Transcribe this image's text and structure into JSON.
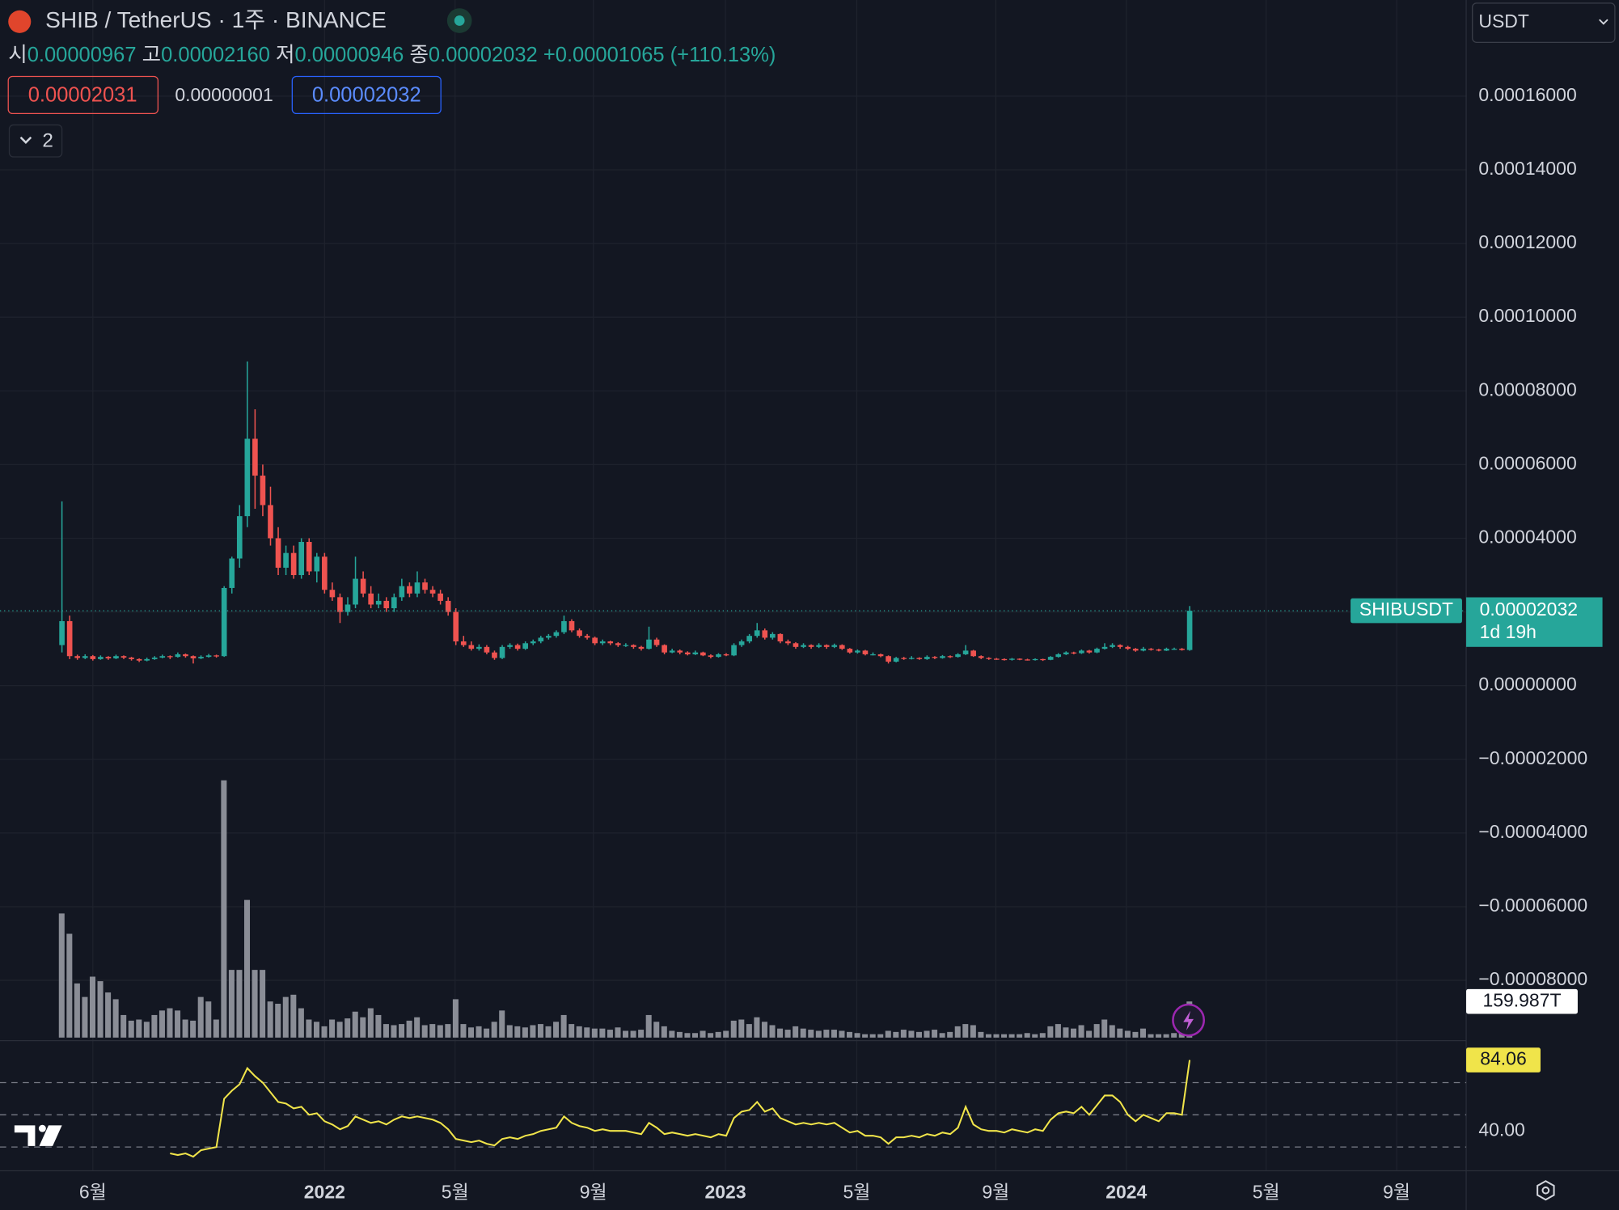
{
  "header": {
    "title": "SHIB / TetherUS · 1주 · BINANCE",
    "ohlc": [
      {
        "key": "시",
        "value": "0.00000967"
      },
      {
        "key": "고",
        "value": "0.00002160"
      },
      {
        "key": "저",
        "value": "0.00000946"
      },
      {
        "key": "종",
        "value": "0.00002032"
      }
    ],
    "change": "+0.00001065 (+110.13%)",
    "boxes": [
      "0.00002031",
      "0.00000001",
      "0.00002032"
    ],
    "indicators_toggle": "2",
    "currency": "USDT"
  },
  "chart_data": {
    "type": "candlestick",
    "up_color": "#26a69a",
    "down_color": "#ef5350",
    "grid": true,
    "ylim": [
      -9.61e-05,
      0.0001861
    ],
    "yticks": [
      {
        "value": 0.00016,
        "label": "0.00016000"
      },
      {
        "value": 0.00014,
        "label": "0.00014000"
      },
      {
        "value": 0.00012,
        "label": "0.00012000"
      },
      {
        "value": 0.0001,
        "label": "0.00010000"
      },
      {
        "value": 8e-05,
        "label": "0.00008000"
      },
      {
        "value": 6e-05,
        "label": "0.00006000"
      },
      {
        "value": 4e-05,
        "label": "0.00004000"
      },
      {
        "value": 2e-05,
        "label": "0.00002000"
      },
      {
        "value": 0,
        "label": "0.00000000"
      },
      {
        "value": -2e-05,
        "label": "−0.00002000"
      },
      {
        "value": -4e-05,
        "label": "−0.00004000"
      },
      {
        "value": -6e-05,
        "label": "−0.00006000"
      },
      {
        "value": -8e-05,
        "label": "−0.00008000"
      }
    ],
    "xlim": [
      -8.02,
      181.8
    ],
    "xticks": [
      {
        "value": 4.0,
        "label": "6월"
      },
      {
        "value": 34.0,
        "label": "2022"
      },
      {
        "value": 50.9,
        "label": "5월"
      },
      {
        "value": 68.8,
        "label": "9월"
      },
      {
        "value": 85.9,
        "label": "2023"
      },
      {
        "value": 102.9,
        "label": "5월"
      },
      {
        "value": 120.9,
        "label": "9월"
      },
      {
        "value": 137.8,
        "label": "2024"
      },
      {
        "value": 155.9,
        "label": "5월"
      },
      {
        "value": 172.8,
        "label": "9월"
      }
    ],
    "symbol_label": "SHIBUSDT",
    "last_price_label": "0.00002032",
    "countdown": "1d 19h",
    "candles": [
      [
        1.1e-05,
        5e-05,
        9e-06,
        1.75e-05
      ],
      [
        1.75e-05,
        1.9e-05,
        7.2e-06,
        8e-06
      ],
      [
        8e-06,
        8.4e-06,
        7e-06,
        7.5e-06
      ],
      [
        7.5e-06,
        8.5e-06,
        7.2e-06,
        8e-06
      ],
      [
        8e-06,
        8.3e-06,
        6.8e-06,
        7.2e-06
      ],
      [
        7.2e-06,
        8.2e-06,
        7e-06,
        7.8e-06
      ],
      [
        7.8e-06,
        8e-06,
        7e-06,
        7.4e-06
      ],
      [
        7.4e-06,
        8.4e-06,
        7.2e-06,
        8e-06
      ],
      [
        8e-06,
        8.2e-06,
        7.2e-06,
        7.6e-06
      ],
      [
        7.6e-06,
        7.8e-06,
        6.8e-06,
        7.2e-06
      ],
      [
        7.2e-06,
        7.4e-06,
        6.4e-06,
        6.8e-06
      ],
      [
        6.8e-06,
        7.6e-06,
        6.6e-06,
        7.2e-06
      ],
      [
        7.2e-06,
        8e-06,
        7e-06,
        7.6e-06
      ],
      [
        7.6e-06,
        8.4e-06,
        7.4e-06,
        8e-06
      ],
      [
        8e-06,
        8.2e-06,
        7.2e-06,
        7.8e-06
      ],
      [
        7.8e-06,
        9e-06,
        7.6e-06,
        8.5e-06
      ],
      [
        8.5e-06,
        8.7e-06,
        7.6e-06,
        8e-06
      ],
      [
        8e-06,
        8.2e-06,
        6e-06,
        7.4e-06
      ],
      [
        7.4e-06,
        8.2e-06,
        7.2e-06,
        7.8e-06
      ],
      [
        7.8e-06,
        8.6e-06,
        7.6e-06,
        8.2e-06
      ],
      [
        8.2e-06,
        8.4e-06,
        7.6e-06,
        8e-06
      ],
      [
        8e-06,
        2.7e-05,
        7.8e-06,
        2.65e-05
      ],
      [
        2.65e-05,
        3.5e-05,
        2.5e-05,
        3.45e-05
      ],
      [
        3.45e-05,
        4.9e-05,
        3.2e-05,
        4.6e-05
      ],
      [
        4.6e-05,
        8.8e-05,
        4.3e-05,
        6.7e-05
      ],
      [
        6.7e-05,
        7.5e-05,
        4.8e-05,
        5.7e-05
      ],
      [
        5.7e-05,
        6e-05,
        4.6e-05,
        4.9e-05
      ],
      [
        4.9e-05,
        5.4e-05,
        3.8e-05,
        4e-05
      ],
      [
        4e-05,
        4.3e-05,
        3e-05,
        3.2e-05
      ],
      [
        3.2e-05,
        3.8e-05,
        3e-05,
        3.6e-05
      ],
      [
        3.6e-05,
        3.8e-05,
        2.9e-05,
        3e-05
      ],
      [
        3e-05,
        4e-05,
        2.9e-05,
        3.9e-05
      ],
      [
        3.9e-05,
        4e-05,
        3e-05,
        3.1e-05
      ],
      [
        3.1e-05,
        3.6e-05,
        2.8e-05,
        3.5e-05
      ],
      [
        3.5e-05,
        3.6e-05,
        2.5e-05,
        2.6e-05
      ],
      [
        2.6e-05,
        2.8e-05,
        2.3e-05,
        2.4e-05
      ],
      [
        2.4e-05,
        2.5e-05,
        1.7e-05,
        2e-05
      ],
      [
        2e-05,
        2.4e-05,
        1.9e-05,
        2.2e-05
      ],
      [
        2.2e-05,
        3.5e-05,
        2.1e-05,
        2.9e-05
      ],
      [
        2.9e-05,
        3.1e-05,
        2.4e-05,
        2.5e-05
      ],
      [
        2.5e-05,
        2.7e-05,
        2.1e-05,
        2.2e-05
      ],
      [
        2.2e-05,
        2.5e-05,
        2.1e-05,
        2.3e-05
      ],
      [
        2.3e-05,
        2.4e-05,
        2e-05,
        2.1e-05
      ],
      [
        2.1e-05,
        2.5e-05,
        2e-05,
        2.4e-05
      ],
      [
        2.4e-05,
        2.9e-05,
        2.3e-05,
        2.7e-05
      ],
      [
        2.7e-05,
        2.8e-05,
        2.4e-05,
        2.5e-05
      ],
      [
        2.5e-05,
        3.1e-05,
        2.4e-05,
        2.8e-05
      ],
      [
        2.8e-05,
        2.9e-05,
        2.5e-05,
        2.6e-05
      ],
      [
        2.6e-05,
        2.7e-05,
        2.4e-05,
        2.5e-05
      ],
      [
        2.5e-05,
        2.6e-05,
        2.2e-05,
        2.3e-05
      ],
      [
        2.3e-05,
        2.4e-05,
        1.9e-05,
        2e-05
      ],
      [
        2e-05,
        2.1e-05,
        1.1e-05,
        1.2e-05
      ],
      [
        1.2e-05,
        1.35e-05,
        1.05e-05,
        1.1e-05
      ],
      [
        1.1e-05,
        1.2e-05,
        9.5e-06,
        1e-05
      ],
      [
        1e-05,
        1.12e-05,
        9.5e-06,
        1.05e-05
      ],
      [
        1.05e-05,
        1.1e-05,
        8.5e-06,
        9e-06
      ],
      [
        9e-06,
        9.5e-06,
        7e-06,
        7.5e-06
      ],
      [
        7.5e-06,
        1.1e-05,
        7.2e-06,
        1.05e-05
      ],
      [
        1.05e-05,
        1.15e-05,
        1e-05,
        1.1e-05
      ],
      [
        1.1e-05,
        1.14e-05,
        9.5e-06,
        1e-05
      ],
      [
        1e-05,
        1.2e-05,
        9.7e-06,
        1.15e-05
      ],
      [
        1.15e-05,
        1.25e-05,
        1.1e-05,
        1.2e-05
      ],
      [
        1.2e-05,
        1.35e-05,
        1.15e-05,
        1.3e-05
      ],
      [
        1.3e-05,
        1.4e-05,
        1.25e-05,
        1.35e-05
      ],
      [
        1.35e-05,
        1.5e-05,
        1.3e-05,
        1.45e-05
      ],
      [
        1.45e-05,
        1.9e-05,
        1.4e-05,
        1.75e-05
      ],
      [
        1.75e-05,
        1.8e-05,
        1.45e-05,
        1.5e-05
      ],
      [
        1.5e-05,
        1.55e-05,
        1.3e-05,
        1.35e-05
      ],
      [
        1.35e-05,
        1.4e-05,
        1.25e-05,
        1.3e-05
      ],
      [
        1.3e-05,
        1.33e-05,
        1.1e-05,
        1.15e-05
      ],
      [
        1.15e-05,
        1.25e-05,
        1.1e-05,
        1.2e-05
      ],
      [
        1.2e-05,
        1.22e-05,
        1.1e-05,
        1.15e-05
      ],
      [
        1.15e-05,
        1.18e-05,
        1.05e-05,
        1.1e-05
      ],
      [
        1.1e-05,
        1.15e-05,
        1.05e-05,
        1.1e-05
      ],
      [
        1.1e-05,
        1.12e-05,
        1e-05,
        1.05e-05
      ],
      [
        1.05e-05,
        1.08e-05,
        9.5e-06,
        1e-05
      ],
      [
        1e-05,
        1.6e-05,
        9.8e-06,
        1.25e-05
      ],
      [
        1.25e-05,
        1.3e-05,
        1.05e-05,
        1.1e-05
      ],
      [
        1.1e-05,
        1.12e-05,
        8.5e-06,
        9e-06
      ],
      [
        9e-06,
        1e-05,
        8.8e-06,
        9.5e-06
      ],
      [
        9.5e-06,
        9.8e-06,
        8.5e-06,
        9e-06
      ],
      [
        9e-06,
        9.3e-06,
        8.2e-06,
        8.5e-06
      ],
      [
        8.5e-06,
        9.5e-06,
        8.3e-06,
        9e-06
      ],
      [
        9e-06,
        9.2e-06,
        8e-06,
        8.2e-06
      ],
      [
        8.2e-06,
        8.5e-06,
        7.4e-06,
        7.8e-06
      ],
      [
        7.8e-06,
        8.8e-06,
        7.6e-06,
        8.5e-06
      ],
      [
        8.5e-06,
        8.8e-06,
        8e-06,
        8.2e-06
      ],
      [
        8.2e-06,
        1.15e-05,
        8e-06,
        1.1e-05
      ],
      [
        1.1e-05,
        1.25e-05,
        1.05e-05,
        1.2e-05
      ],
      [
        1.2e-05,
        1.4e-05,
        1.15e-05,
        1.35e-05
      ],
      [
        1.35e-05,
        1.7e-05,
        1.3e-05,
        1.5e-05
      ],
      [
        1.5e-05,
        1.55e-05,
        1.25e-05,
        1.3e-05
      ],
      [
        1.3e-05,
        1.45e-05,
        1.25e-05,
        1.4e-05
      ],
      [
        1.4e-05,
        1.42e-05,
        1.15e-05,
        1.2e-05
      ],
      [
        1.2e-05,
        1.25e-05,
        1.1e-05,
        1.15e-05
      ],
      [
        1.15e-05,
        1.18e-05,
        1e-05,
        1.05e-05
      ],
      [
        1.05e-05,
        1.15e-05,
        1.02e-05,
        1.1e-05
      ],
      [
        1.1e-05,
        1.12e-05,
        1e-05,
        1.05e-05
      ],
      [
        1.05e-05,
        1.15e-05,
        1.02e-05,
        1.1e-05
      ],
      [
        1.1e-05,
        1.12e-05,
        1e-05,
        1.05e-05
      ],
      [
        1.05e-05,
        1.14e-05,
        1.02e-05,
        1.1e-05
      ],
      [
        1.1e-05,
        1.12e-05,
        9.7e-06,
        1e-05
      ],
      [
        1e-05,
        1.02e-05,
        8.7e-06,
        9e-06
      ],
      [
        9e-06,
        9.8e-06,
        8.7e-06,
        9.5e-06
      ],
      [
        9.5e-06,
        9.7e-06,
        8.2e-06,
        8.5e-06
      ],
      [
        8.5e-06,
        9e-06,
        8.2e-06,
        8.5e-06
      ],
      [
        8.5e-06,
        8.7e-06,
        7.7e-06,
        8e-06
      ],
      [
        8e-06,
        8.2e-06,
        6e-06,
        6.5e-06
      ],
      [
        6.5e-06,
        7.8e-06,
        6.3e-06,
        7.5e-06
      ],
      [
        7.5e-06,
        7.8e-06,
        7e-06,
        7.3e-06
      ],
      [
        7.3e-06,
        8e-06,
        7.1e-06,
        7.5e-06
      ],
      [
        7.5e-06,
        7.7e-06,
        7e-06,
        7.2e-06
      ],
      [
        7.2e-06,
        8.2e-06,
        7e-06,
        7.8e-06
      ],
      [
        7.8e-06,
        8e-06,
        7.2e-06,
        7.5e-06
      ],
      [
        7.5e-06,
        8.3e-06,
        7.3e-06,
        8e-06
      ],
      [
        8e-06,
        8.2e-06,
        7.5e-06,
        7.8e-06
      ],
      [
        7.8e-06,
        8.8e-06,
        7.6e-06,
        8.5e-06
      ],
      [
        8.5e-06,
        1.1e-05,
        8.3e-06,
        9.5e-06
      ],
      [
        9.5e-06,
        9.7e-06,
        7.8e-06,
        8e-06
      ],
      [
        8e-06,
        8.2e-06,
        7.2e-06,
        7.5e-06
      ],
      [
        7.5e-06,
        7.7e-06,
        7e-06,
        7.3e-06
      ],
      [
        7.3e-06,
        7.5e-06,
        7e-06,
        7.2e-06
      ],
      [
        7.2e-06,
        7.4e-06,
        6.8e-06,
        7e-06
      ],
      [
        7e-06,
        7.5e-06,
        6.8e-06,
        7.3e-06
      ],
      [
        7.3e-06,
        7.4e-06,
        6.9e-06,
        7.1e-06
      ],
      [
        7.1e-06,
        7.3e-06,
        6.8e-06,
        7e-06
      ],
      [
        7e-06,
        7.4e-06,
        6.8e-06,
        7.2e-06
      ],
      [
        7.2e-06,
        7.3e-06,
        6.7e-06,
        7e-06
      ],
      [
        7e-06,
        8e-06,
        6.9e-06,
        7.8e-06
      ],
      [
        7.8e-06,
        8.8e-06,
        7.6e-06,
        8.5e-06
      ],
      [
        8.5e-06,
        9.3e-06,
        8.3e-06,
        9e-06
      ],
      [
        9e-06,
        9.2e-06,
        8.5e-06,
        8.8e-06
      ],
      [
        8.8e-06,
        9.8e-06,
        8.6e-06,
        9.5e-06
      ],
      [
        9.5e-06,
        9.7e-06,
        8.7e-06,
        9e-06
      ],
      [
        9e-06,
        1.03e-05,
        8.8e-06,
        1e-05
      ],
      [
        1e-05,
        1.15e-05,
        9.8e-06,
        1.05e-05
      ],
      [
        1.05e-05,
        1.15e-05,
        1.02e-05,
        1.1e-05
      ],
      [
        1.1e-05,
        1.12e-05,
        1e-05,
        1.05e-05
      ],
      [
        1.05e-05,
        1.08e-05,
        9.7e-06,
        1e-05
      ],
      [
        1e-05,
        1.02e-05,
        9.2e-06,
        9.5e-06
      ],
      [
        9.5e-06,
        1.05e-05,
        9.3e-06,
        1e-05
      ],
      [
        1e-05,
        1.02e-05,
        9.5e-06,
        9.8e-06
      ],
      [
        9.8e-06,
        1e-05,
        9.3e-06,
        9.5e-06
      ],
      [
        9.5e-06,
        1.03e-05,
        9.4e-06,
        1e-05
      ],
      [
        1e-05,
        1.03e-05,
        9.7e-06,
        1e-05
      ],
      [
        1e-05,
        1.02e-05,
        9.5e-06,
        9.67e-06
      ],
      [
        9.67e-06,
        2.16e-05,
        9.46e-06,
        2.032e-05
      ]
    ],
    "volume": {
      "type": "bar",
      "color": "#8a8d96",
      "ylim": [
        0,
        1400
      ],
      "last_value_label": "159.987T",
      "values": [
        550,
        460,
        240,
        180,
        270,
        250,
        200,
        170,
        100,
        75,
        80,
        70,
        100,
        120,
        130,
        120,
        80,
        75,
        180,
        160,
        80,
        1140,
        300,
        300,
        610,
        300,
        300,
        160,
        150,
        180,
        190,
        130,
        80,
        70,
        50,
        80,
        70,
        85,
        115,
        90,
        130,
        100,
        60,
        55,
        60,
        75,
        90,
        55,
        60,
        55,
        60,
        170,
        60,
        45,
        50,
        40,
        70,
        120,
        55,
        50,
        45,
        55,
        60,
        50,
        70,
        100,
        60,
        50,
        45,
        40,
        40,
        35,
        45,
        30,
        30,
        35,
        100,
        70,
        50,
        30,
        25,
        20,
        20,
        30,
        20,
        25,
        30,
        75,
        80,
        60,
        90,
        70,
        55,
        40,
        35,
        50,
        40,
        35,
        30,
        35,
        35,
        30,
        25,
        20,
        15,
        15,
        15,
        30,
        25,
        35,
        30,
        25,
        30,
        35,
        20,
        25,
        50,
        60,
        55,
        25,
        15,
        15,
        15,
        15,
        15,
        20,
        15,
        20,
        50,
        60,
        45,
        40,
        55,
        30,
        60,
        80,
        55,
        40,
        30,
        25,
        40,
        15,
        15,
        15,
        20,
        25,
        159.987
      ]
    },
    "rsi": {
      "type": "line",
      "color": "#f0e44a",
      "ylim": [
        16.5,
        94.8
      ],
      "levels": [
        70,
        50,
        30
      ],
      "yticks": [
        {
          "value": 40,
          "label": "40.00"
        }
      ],
      "values": [
        null,
        null,
        null,
        null,
        null,
        null,
        null,
        null,
        null,
        null,
        null,
        null,
        null,
        null,
        26,
        25,
        26,
        24,
        28,
        29,
        30,
        60,
        65,
        69,
        79,
        74,
        70,
        64,
        58,
        57,
        54,
        55,
        50,
        51,
        46,
        44,
        41,
        43,
        49,
        47,
        45,
        46,
        44,
        47,
        49,
        48,
        49,
        48,
        47,
        45,
        41,
        35,
        34,
        33,
        34,
        32,
        31,
        35,
        36,
        35,
        37,
        38,
        40,
        41,
        42,
        49,
        45,
        43,
        42,
        40,
        41,
        40,
        40,
        40,
        39,
        38,
        45,
        42,
        38,
        39,
        38,
        37,
        38,
        37,
        36,
        38,
        37,
        48,
        52,
        53,
        58,
        52,
        54,
        48,
        46,
        44,
        45,
        44,
        45,
        44,
        45,
        42,
        39,
        40,
        37,
        37,
        36,
        32,
        36,
        36,
        37,
        36,
        38,
        37,
        39,
        38,
        42,
        55,
        44,
        41,
        40,
        40,
        39,
        41,
        40,
        39,
        41,
        40,
        47,
        51,
        52,
        51,
        55,
        50,
        56,
        62,
        62,
        58,
        50,
        46,
        50,
        48,
        46,
        51,
        51,
        50,
        84.06
      ]
    }
  }
}
